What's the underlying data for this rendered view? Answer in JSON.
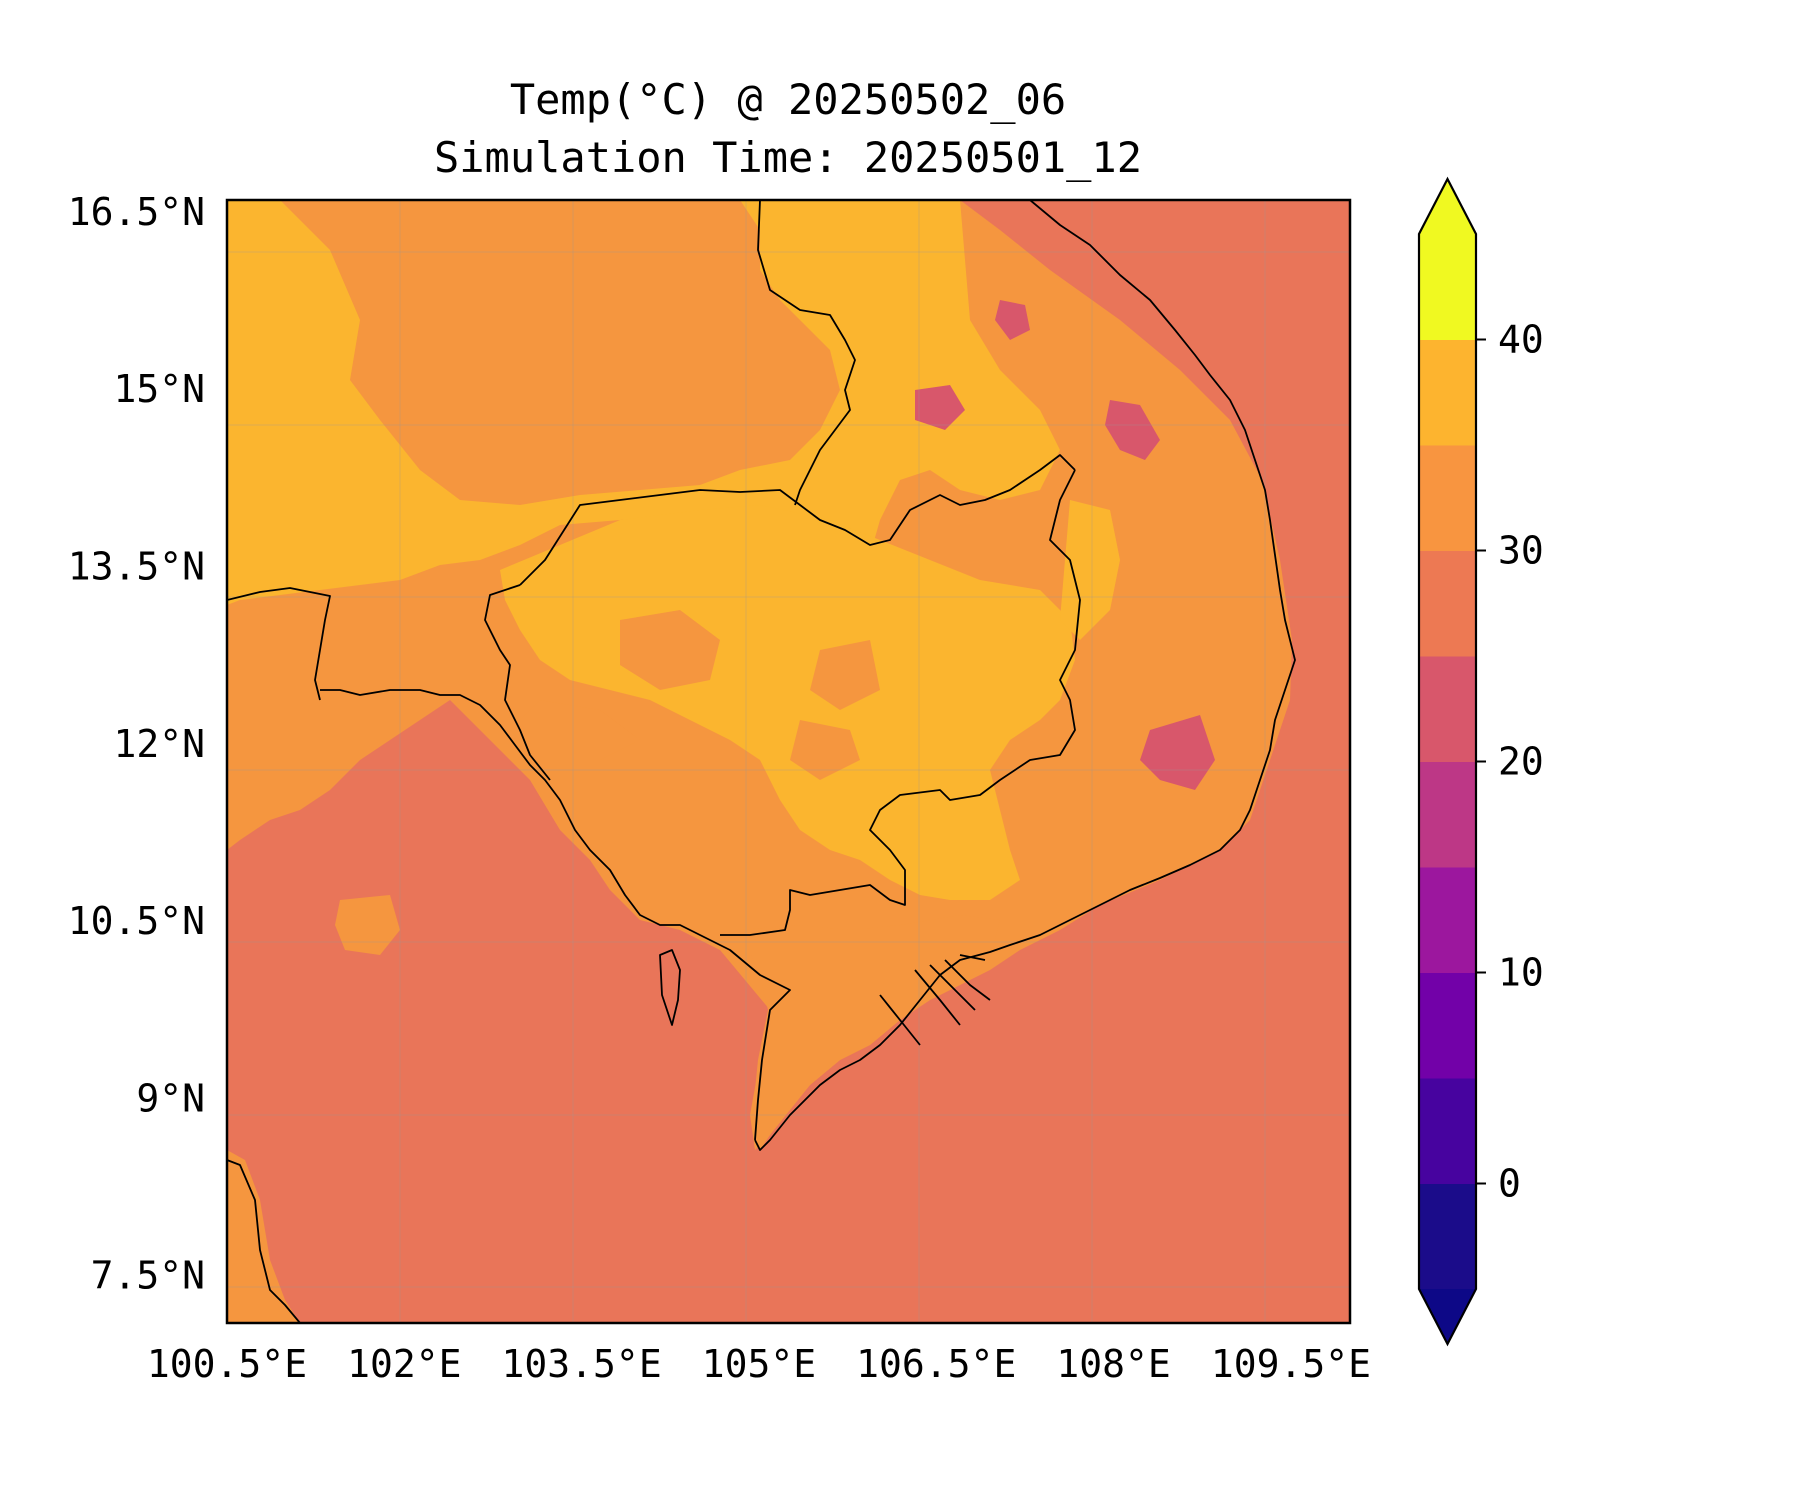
{
  "title": {
    "line1": "Temp(°C) @ 20250502_06",
    "line2": "Simulation Time: 20250501_12"
  },
  "map": {
    "extent": {
      "lon": [
        100.5,
        110.0
      ],
      "lat": [
        7.1,
        16.6
      ]
    },
    "xticks": [
      {
        "value": 100.5,
        "label": "100.5°E"
      },
      {
        "value": 102.0,
        "label": "102°E"
      },
      {
        "value": 103.5,
        "label": "103.5°E"
      },
      {
        "value": 105.0,
        "label": "105°E"
      },
      {
        "value": 106.5,
        "label": "106.5°E"
      },
      {
        "value": 108.0,
        "label": "108°E"
      },
      {
        "value": 109.5,
        "label": "109.5°E"
      }
    ],
    "yticks": [
      {
        "value": 16.5,
        "label": "16.5°N"
      },
      {
        "value": 15.0,
        "label": "15°N"
      },
      {
        "value": 13.5,
        "label": "13.5°N"
      },
      {
        "value": 12.0,
        "label": "12°N"
      },
      {
        "value": 10.5,
        "label": "10.5°N"
      },
      {
        "value": 9.0,
        "label": "9°N"
      },
      {
        "value": 7.5,
        "label": "7.5°N"
      }
    ],
    "grid": true,
    "ocean_band": "25–30 °C",
    "land_bands": [
      "30–35 °C",
      "35–40 °C"
    ],
    "cool_spots_band": "20–25 °C"
  },
  "colorbar": {
    "label": "",
    "min": -5,
    "max": 45,
    "extend": "both",
    "ticks": [
      {
        "value": 0,
        "label": "0"
      },
      {
        "value": 10,
        "label": "10"
      },
      {
        "value": 20,
        "label": "20"
      },
      {
        "value": 30,
        "label": "30"
      },
      {
        "value": 40,
        "label": "40"
      }
    ],
    "levels": [
      -5,
      0,
      5,
      10,
      15,
      20,
      25,
      30,
      35,
      40,
      45
    ],
    "colors": [
      "#1b0c8a",
      "#47039f",
      "#7201a8",
      "#9c179e",
      "#bd3786",
      "#d8576b",
      "#ed7953",
      "#f89540",
      "#fdb42f",
      "#f0f921"
    ],
    "under_color": "#0d0887",
    "over_color": "#f0f921"
  },
  "colors": {
    "ocean": "#e97559",
    "land_warm": "#f5963f",
    "land_hot": "#fbb52f",
    "cool_spot": "#d8576b",
    "coastline": "#000000"
  }
}
